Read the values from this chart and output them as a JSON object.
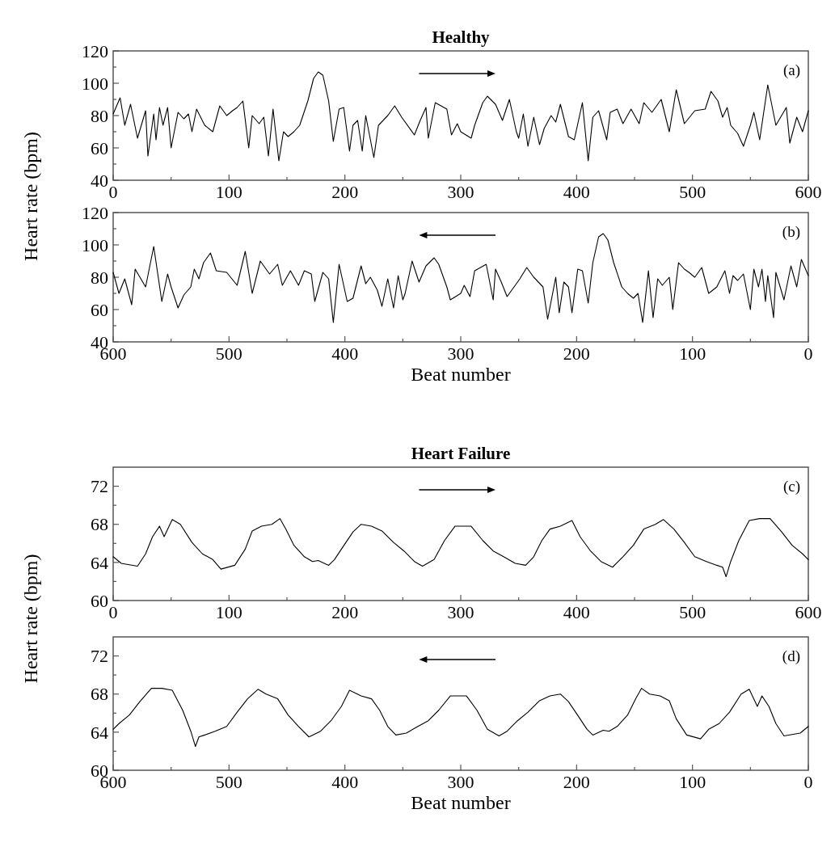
{
  "chart_data": [
    {
      "type": "line",
      "title": "Healthy",
      "ylabel": "Heart rate (bpm)",
      "annotations": [
        "(a)"
      ],
      "marker": "none",
      "line_style": "solid",
      "xlim": [
        0,
        600
      ],
      "ylim": [
        40,
        120
      ],
      "xticks": [
        0,
        {
          "value": 50,
          "label": null
        },
        100,
        {
          "value": 150,
          "label": null
        },
        200,
        {
          "value": 250,
          "label": null
        },
        300,
        {
          "value": 350,
          "label": null
        },
        400,
        {
          "value": 450,
          "label": null
        },
        500,
        {
          "value": 550,
          "label": null
        },
        600
      ],
      "yticks": [
        40,
        {
          "value": 50,
          "label": null
        },
        60,
        {
          "value": 70,
          "label": null
        },
        80,
        {
          "value": 90,
          "label": null
        },
        100,
        {
          "value": 110,
          "label": null
        },
        120
      ],
      "x": [
        0,
        6,
        10,
        15,
        21,
        28,
        30,
        35,
        37,
        40,
        43,
        47,
        50,
        56,
        61,
        65,
        68,
        72,
        79,
        86,
        92,
        98,
        103,
        107,
        112,
        117,
        120,
        126,
        130,
        134,
        138,
        143,
        147,
        151,
        156,
        161,
        168,
        173,
        177,
        181,
        186,
        190,
        195,
        199,
        204,
        207,
        211,
        215,
        218,
        225,
        229,
        237,
        243,
        249,
        260,
        265,
        270,
        272,
        278,
        288,
        292,
        297,
        300,
        309,
        312,
        319,
        323,
        330,
        336,
        342,
        348,
        350,
        354,
        358,
        363,
        368,
        372,
        378,
        382,
        386,
        393,
        398,
        405,
        410,
        414,
        419,
        426,
        429,
        435,
        440,
        447,
        454,
        458,
        465,
        473,
        480,
        486,
        493,
        502,
        511,
        516,
        522,
        526,
        530,
        533,
        539,
        544,
        550,
        553,
        558,
        565,
        572,
        581,
        584,
        590,
        595,
        600
      ],
      "series": [
        {
          "color": "#000000",
          "values": [
            81,
            91,
            74,
            87,
            66,
            83,
            55,
            81,
            65,
            85,
            74,
            85,
            60,
            82,
            78,
            81,
            70,
            84,
            74,
            70,
            86,
            80,
            83,
            85,
            89,
            60,
            80,
            75,
            79,
            55,
            84,
            52,
            70,
            67,
            70,
            74,
            89,
            103,
            107,
            105,
            89,
            64,
            84,
            85,
            58,
            74,
            77,
            58,
            80,
            54,
            74,
            80,
            86,
            79,
            68,
            77,
            85,
            66,
            88,
            84,
            68,
            75,
            70,
            66,
            74,
            88,
            92,
            87,
            77,
            90,
            70,
            66,
            81,
            61,
            79,
            62,
            72,
            80,
            76,
            87,
            67,
            65,
            88,
            52,
            79,
            83,
            65,
            82,
            84,
            75,
            84,
            75,
            88,
            82,
            90,
            70,
            96,
            75,
            83,
            84,
            95,
            89,
            79,
            85,
            74,
            69,
            61,
            74,
            82,
            65,
            99,
            74,
            85,
            63,
            79,
            70,
            83
          ]
        }
      ]
    },
    {
      "type": "line",
      "xlabel": "Beat number",
      "annotations": [
        "(b)"
      ],
      "marker": "none",
      "line_style": "solid",
      "xlim": [
        600,
        0
      ],
      "ylim": [
        40,
        120
      ],
      "xticks": [
        600,
        {
          "value": 550,
          "label": null
        },
        500,
        {
          "value": 450,
          "label": null
        },
        400,
        {
          "value": 350,
          "label": null
        },
        300,
        {
          "value": 250,
          "label": null
        },
        200,
        {
          "value": 150,
          "label": null
        },
        100,
        {
          "value": 50,
          "label": null
        },
        0
      ],
      "yticks": [
        40,
        {
          "value": 50,
          "label": null
        },
        60,
        {
          "value": 70,
          "label": null
        },
        80,
        {
          "value": 90,
          "label": null
        },
        100,
        {
          "value": 110,
          "label": null
        },
        120
      ],
      "x": [
        0,
        6,
        10,
        15,
        21,
        28,
        30,
        35,
        37,
        40,
        43,
        47,
        50,
        56,
        61,
        65,
        68,
        72,
        79,
        86,
        92,
        98,
        103,
        107,
        112,
        117,
        120,
        126,
        130,
        134,
        138,
        143,
        147,
        151,
        156,
        161,
        168,
        173,
        177,
        181,
        186,
        190,
        195,
        199,
        204,
        207,
        211,
        215,
        218,
        225,
        229,
        237,
        243,
        249,
        260,
        265,
        270,
        272,
        278,
        288,
        292,
        297,
        300,
        309,
        312,
        319,
        323,
        330,
        336,
        342,
        348,
        350,
        354,
        358,
        363,
        368,
        372,
        378,
        382,
        386,
        393,
        398,
        405,
        410,
        414,
        419,
        426,
        429,
        435,
        440,
        447,
        454,
        458,
        465,
        473,
        480,
        486,
        493,
        502,
        511,
        516,
        522,
        526,
        530,
        533,
        539,
        544,
        550,
        553,
        558,
        565,
        572,
        581,
        584,
        590,
        595,
        600
      ],
      "series": [
        {
          "color": "#000000",
          "values": [
            81,
            91,
            74,
            87,
            66,
            83,
            55,
            81,
            65,
            85,
            74,
            85,
            60,
            82,
            78,
            81,
            70,
            84,
            74,
            70,
            86,
            80,
            83,
            85,
            89,
            60,
            80,
            75,
            79,
            55,
            84,
            52,
            70,
            67,
            70,
            74,
            89,
            103,
            107,
            105,
            89,
            64,
            84,
            85,
            58,
            74,
            77,
            58,
            80,
            54,
            74,
            80,
            86,
            79,
            68,
            77,
            85,
            66,
            88,
            84,
            68,
            75,
            70,
            66,
            74,
            88,
            92,
            87,
            77,
            90,
            70,
            66,
            81,
            61,
            79,
            62,
            72,
            80,
            76,
            87,
            67,
            65,
            88,
            52,
            79,
            83,
            65,
            82,
            84,
            75,
            84,
            75,
            88,
            82,
            90,
            70,
            96,
            75,
            83,
            84,
            95,
            89,
            79,
            85,
            74,
            69,
            61,
            74,
            82,
            65,
            99,
            74,
            85,
            63,
            79,
            70,
            83
          ]
        }
      ]
    },
    {
      "type": "line",
      "title": "Heart Failure",
      "ylabel": "Heart rate (bpm)",
      "annotations": [
        "(c)"
      ],
      "marker": "none",
      "line_style": "solid",
      "xlim": [
        0,
        600
      ],
      "ylim": [
        60,
        74
      ],
      "xticks": [
        0,
        {
          "value": 50,
          "label": null
        },
        100,
        {
          "value": 150,
          "label": null
        },
        200,
        {
          "value": 250,
          "label": null
        },
        300,
        {
          "value": 350,
          "label": null
        },
        400,
        {
          "value": 450,
          "label": null
        },
        500,
        {
          "value": 550,
          "label": null
        },
        600
      ],
      "yticks": [
        60,
        {
          "value": 62,
          "label": null
        },
        64,
        {
          "value": 66,
          "label": null
        },
        68,
        {
          "value": 70,
          "label": null
        },
        72
      ],
      "x": [
        0,
        7,
        21,
        28,
        34,
        40,
        44,
        51,
        58,
        68,
        77,
        86,
        93,
        105,
        114,
        120,
        128,
        137,
        144,
        149,
        156,
        165,
        172,
        177,
        186,
        191,
        197,
        207,
        214,
        223,
        232,
        242,
        251,
        260,
        267,
        277,
        286,
        295,
        300,
        309,
        319,
        328,
        337,
        347,
        356,
        363,
        370,
        377,
        386,
        396,
        403,
        412,
        421,
        431,
        440,
        449,
        458,
        468,
        475,
        484,
        493,
        502,
        512,
        521,
        526,
        529,
        533,
        540,
        549,
        558,
        567,
        577,
        586,
        595,
        600
      ],
      "series": [
        {
          "color": "#000000",
          "values": [
            64.6,
            63.9,
            63.6,
            64.9,
            66.7,
            67.8,
            66.7,
            68.5,
            68.0,
            66.1,
            64.9,
            64.3,
            63.3,
            63.7,
            65.4,
            67.3,
            67.8,
            68.0,
            68.6,
            67.5,
            65.8,
            64.6,
            64.1,
            64.2,
            63.7,
            64.3,
            65.4,
            67.2,
            68.0,
            67.8,
            67.3,
            66.1,
            65.2,
            64.1,
            63.6,
            64.3,
            66.3,
            67.8,
            67.8,
            67.8,
            66.3,
            65.2,
            64.6,
            63.9,
            63.7,
            64.6,
            66.3,
            67.5,
            67.8,
            68.4,
            66.7,
            65.2,
            64.1,
            63.5,
            64.6,
            65.8,
            67.5,
            68.0,
            68.5,
            67.5,
            66.1,
            64.6,
            64.1,
            63.7,
            63.5,
            62.5,
            64.1,
            66.3,
            68.4,
            68.6,
            68.6,
            67.2,
            65.8,
            64.9,
            64.3
          ]
        }
      ]
    },
    {
      "type": "line",
      "xlabel": "Beat number",
      "annotations": [
        "(d)"
      ],
      "marker": "none",
      "line_style": "solid",
      "xlim": [
        600,
        0
      ],
      "ylim": [
        60,
        74
      ],
      "xticks": [
        600,
        {
          "value": 550,
          "label": null
        },
        500,
        {
          "value": 450,
          "label": null
        },
        400,
        {
          "value": 350,
          "label": null
        },
        300,
        {
          "value": 250,
          "label": null
        },
        200,
        {
          "value": 150,
          "label": null
        },
        100,
        {
          "value": 50,
          "label": null
        },
        0
      ],
      "yticks": [
        60,
        {
          "value": 62,
          "label": null
        },
        64,
        {
          "value": 66,
          "label": null
        },
        68,
        {
          "value": 70,
          "label": null
        },
        72
      ],
      "x": [
        0,
        7,
        21,
        28,
        34,
        40,
        44,
        51,
        58,
        68,
        77,
        86,
        93,
        105,
        114,
        120,
        128,
        137,
        144,
        149,
        156,
        165,
        172,
        177,
        186,
        191,
        197,
        207,
        214,
        223,
        232,
        242,
        251,
        260,
        267,
        277,
        286,
        295,
        300,
        309,
        319,
        328,
        337,
        347,
        356,
        363,
        370,
        377,
        386,
        396,
        403,
        412,
        421,
        431,
        440,
        449,
        458,
        468,
        475,
        484,
        493,
        502,
        512,
        521,
        526,
        529,
        533,
        540,
        549,
        558,
        567,
        577,
        586,
        595,
        600
      ],
      "series": [
        {
          "color": "#000000",
          "values": [
            64.6,
            63.9,
            63.6,
            64.9,
            66.7,
            67.8,
            66.7,
            68.5,
            68.0,
            66.1,
            64.9,
            64.3,
            63.3,
            63.7,
            65.4,
            67.3,
            67.8,
            68.0,
            68.6,
            67.5,
            65.8,
            64.6,
            64.1,
            64.2,
            63.7,
            64.3,
            65.4,
            67.2,
            68.0,
            67.8,
            67.3,
            66.1,
            65.2,
            64.1,
            63.6,
            64.3,
            66.3,
            67.8,
            67.8,
            67.8,
            66.3,
            65.2,
            64.6,
            63.9,
            63.7,
            64.6,
            66.3,
            67.5,
            67.8,
            68.4,
            66.7,
            65.2,
            64.1,
            63.5,
            64.6,
            65.8,
            67.5,
            68.0,
            68.5,
            67.5,
            66.1,
            64.6,
            64.1,
            63.7,
            63.5,
            62.5,
            64.1,
            66.3,
            68.4,
            68.6,
            68.6,
            67.2,
            65.8,
            64.9,
            64.3
          ]
        }
      ]
    }
  ]
}
